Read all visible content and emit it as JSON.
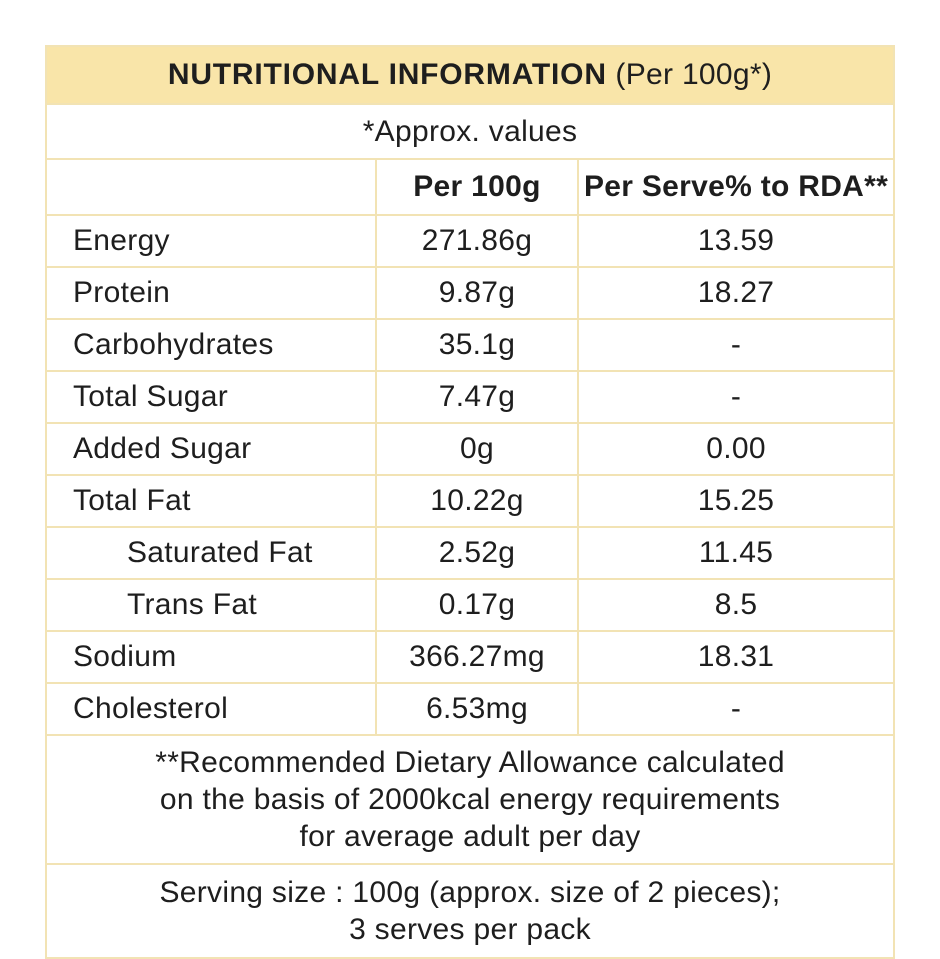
{
  "colors": {
    "header_bg": "#F9E5A9",
    "line": "#F2E3B4",
    "text": "#1E1E1E"
  },
  "table": {
    "title": "NUTRITIONAL INFORMATION",
    "title_suffix": " (Per 100g*)",
    "subtitle": "*Approx. values",
    "columns": {
      "nutrient": "",
      "per_100g": "Per 100g",
      "per_serve_rda": "Per Serve% to RDA**"
    },
    "rows": [
      {
        "label": "Energy",
        "per_100g": "271.86g",
        "per_serve_rda": "13.59",
        "indent": false
      },
      {
        "label": "Protein",
        "per_100g": "9.87g",
        "per_serve_rda": "18.27",
        "indent": false
      },
      {
        "label": "Carbohydrates",
        "per_100g": "35.1g",
        "per_serve_rda": "-",
        "indent": false
      },
      {
        "label": "Total Sugar",
        "per_100g": "7.47g",
        "per_serve_rda": "-",
        "indent": false
      },
      {
        "label": "Added Sugar",
        "per_100g": "0g",
        "per_serve_rda": "0.00",
        "indent": false
      },
      {
        "label": "Total Fat",
        "per_100g": "10.22g",
        "per_serve_rda": "15.25",
        "indent": false
      },
      {
        "label": "Saturated Fat",
        "per_100g": "2.52g",
        "per_serve_rda": "11.45",
        "indent": true
      },
      {
        "label": "Trans Fat",
        "per_100g": "0.17g",
        "per_serve_rda": "8.5",
        "indent": true
      },
      {
        "label": "Sodium",
        "per_100g": "366.27mg",
        "per_serve_rda": "18.31",
        "indent": false
      },
      {
        "label": "Cholesterol",
        "per_100g": "6.53mg",
        "per_serve_rda": "-",
        "indent": false
      }
    ],
    "notes": {
      "rda_lines": [
        "**Recommended Dietary Allowance calculated",
        "on the basis of 2000kcal energy requirements",
        "for average adult per day"
      ],
      "serving_lines": [
        "Serving size : 100g (approx. size of 2 pieces);",
        "3 serves per pack"
      ]
    }
  }
}
